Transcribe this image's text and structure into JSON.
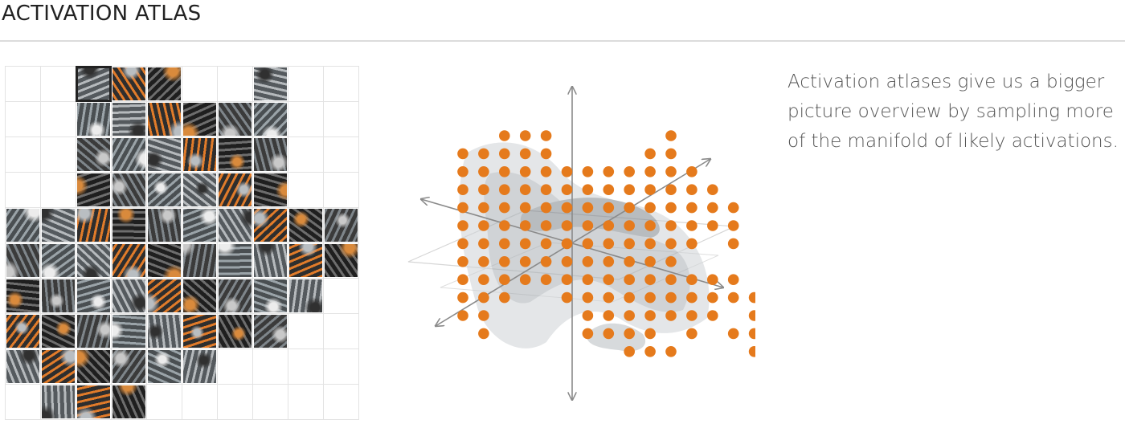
{
  "header": {
    "title": "ACTIVATION ATLAS"
  },
  "description": "Activation atlases give us a bigger picture overview by sampling more of the manifold of likely activations.",
  "atlas": {
    "rows": 10,
    "cols": 10,
    "selected_tile": [
      0,
      2
    ],
    "filled_tiles": [
      "..FFF..F..",
      "..FFFFFF..",
      "..FFFFFF..",
      "..FFFFFF..",
      "FFFFFFFFFF",
      "FFFFFFFFFF",
      "FFFFFFFFF.",
      "FFFFFFFF..",
      "FFFFFF....",
      ".FFF......"
    ]
  },
  "dot_grid": {
    "dot_color": "#e57a1c",
    "rows": [
      "..OOO.....O.....",
      "OOOOO....OO.....",
      "OOOOOOOOOOOO....",
      "OOOOOOOOOOOOO...",
      "OOOOOOOOOOOOOO..",
      "OOOOOOOOOOOOOO..",
      "OOOOOOOOOOOO.O..",
      "OOOOOOOOOOO.....",
      "OOOOOOOOOOOOOO..",
      "OOO..OOOOOOOOOO.",
      "OO....OOOOOOO.O.",
      ".O....OOOO.O.OO.",
      "........OOO...O.",
      "................"
    ]
  },
  "colors": {
    "accent": "#e57a1c",
    "axis": "#8a8a8a",
    "grid_line": "#e3e3e3"
  }
}
